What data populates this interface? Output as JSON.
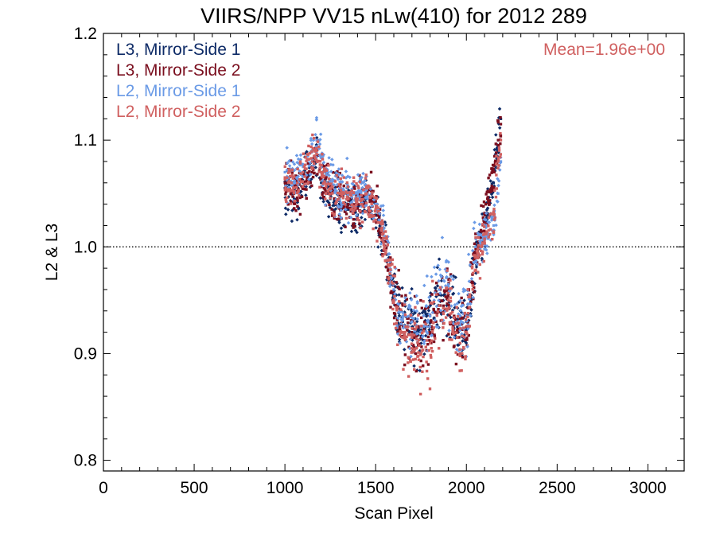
{
  "chart_data": {
    "type": "scatter",
    "title": "VIIRS/NPP VV15 nLw(410) for 2012 289",
    "xlabel": "Scan Pixel",
    "ylabel": "L2 & L3",
    "xlim": [
      0,
      3200
    ],
    "ylim": [
      0.79,
      1.2
    ],
    "xticks": [
      0,
      500,
      1000,
      1500,
      2000,
      2500,
      3000
    ],
    "yticks": [
      0.8,
      0.9,
      1.0,
      1.1,
      1.2
    ],
    "x_tick_labels": [
      "0",
      "500",
      "1000",
      "1500",
      "2000",
      "2500",
      "3000"
    ],
    "y_tick_labels": [
      "0.8",
      "0.9",
      "1.0",
      "1.1",
      "1.2"
    ],
    "reference_line": 1.0,
    "annotation": "Mean=1.96e+00",
    "annotation_color": "#d06060",
    "legend_position": "top-left",
    "series": [
      {
        "name": "L3, Mirror-Side 1",
        "color": "#0d2a66",
        "x": [
          1000,
          1050,
          1100,
          1150,
          1175,
          1200,
          1250,
          1300,
          1350,
          1400,
          1450,
          1500,
          1550,
          1600,
          1650,
          1700,
          1750,
          1800,
          1850,
          1900,
          1950,
          2000,
          2050,
          2100,
          2150,
          2175,
          2190
        ],
        "values": [
          1.055,
          1.045,
          1.06,
          1.075,
          1.08,
          1.06,
          1.045,
          1.04,
          1.035,
          1.03,
          1.045,
          1.03,
          1.0,
          0.955,
          0.93,
          0.925,
          0.92,
          0.93,
          0.955,
          0.96,
          0.925,
          0.93,
          0.99,
          1.02,
          1.06,
          1.1,
          1.12
        ]
      },
      {
        "name": "L3, Mirror-Side 2",
        "color": "#7a0e1e",
        "x": [
          1000,
          1050,
          1100,
          1150,
          1175,
          1200,
          1250,
          1300,
          1350,
          1400,
          1450,
          1500,
          1550,
          1600,
          1650,
          1700,
          1750,
          1800,
          1850,
          1900,
          1950,
          2000,
          2050,
          2100,
          2150,
          2175,
          2190
        ],
        "values": [
          1.06,
          1.05,
          1.055,
          1.07,
          1.085,
          1.065,
          1.05,
          1.045,
          1.04,
          1.04,
          1.05,
          1.035,
          1.005,
          0.95,
          0.925,
          0.92,
          0.915,
          0.925,
          0.95,
          0.955,
          0.92,
          0.925,
          0.995,
          1.03,
          1.07,
          1.1,
          1.115
        ]
      },
      {
        "name": "L2, Mirror-Side 1",
        "color": "#6a9ae6",
        "x": [
          1000,
          1050,
          1100,
          1150,
          1175,
          1200,
          1250,
          1300,
          1350,
          1400,
          1450,
          1500,
          1550,
          1600,
          1650,
          1700,
          1750,
          1800,
          1850,
          1900,
          1950,
          2000,
          2050,
          2100,
          2150,
          2175,
          2190
        ],
        "values": [
          1.07,
          1.06,
          1.075,
          1.09,
          1.1,
          1.075,
          1.06,
          1.055,
          1.05,
          1.05,
          1.055,
          1.04,
          1.01,
          0.96,
          0.935,
          0.93,
          0.925,
          0.935,
          0.96,
          0.965,
          0.93,
          0.935,
          1.0,
          1.01,
          1.02,
          1.05,
          1.08
        ]
      },
      {
        "name": "L2, Mirror-Side 2",
        "color": "#d06060",
        "x": [
          1000,
          1050,
          1100,
          1150,
          1175,
          1200,
          1250,
          1300,
          1350,
          1400,
          1450,
          1500,
          1550,
          1600,
          1650,
          1700,
          1750,
          1800,
          1850,
          1900,
          1950,
          2000,
          2050,
          2100,
          2150,
          2175,
          2190
        ],
        "values": [
          1.065,
          1.055,
          1.07,
          1.08,
          1.09,
          1.07,
          1.055,
          1.05,
          1.045,
          1.045,
          1.05,
          1.035,
          1.0,
          0.95,
          0.92,
          0.915,
          0.9,
          0.91,
          0.945,
          0.95,
          0.915,
          0.92,
          0.99,
          1.005,
          1.03,
          1.08,
          1.1
        ]
      }
    ]
  }
}
